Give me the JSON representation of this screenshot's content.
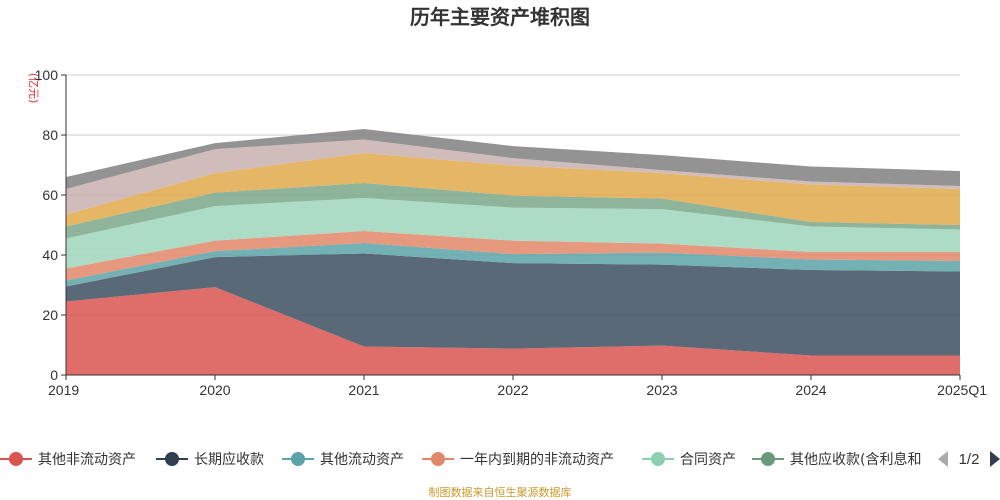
{
  "chart_data": {
    "type": "area",
    "stacked": true,
    "title": "历年主要资产堆积图",
    "unit_label": "(亿元)",
    "x": [
      "2019",
      "2020",
      "2021",
      "2022",
      "2023",
      "2024",
      "2025Q1"
    ],
    "ylim": [
      0,
      100
    ],
    "yticks": [
      0,
      20,
      40,
      60,
      80,
      100
    ],
    "grid": true,
    "legend_position": "bottom",
    "series": [
      {
        "name": "其他非流动资产",
        "color": "#d9534f",
        "values": [
          24.5,
          29.3,
          9.5,
          8.8,
          9.8,
          6.5,
          6.5
        ]
      },
      {
        "name": "长期应收款",
        "color": "#3d4f5f",
        "values": [
          5.0,
          10.0,
          31.0,
          28.5,
          27.0,
          28.5,
          28.0
        ]
      },
      {
        "name": "其他流动资产",
        "color": "#5ba3a8",
        "values": [
          2.0,
          2.0,
          3.5,
          3.0,
          4.0,
          3.5,
          3.5
        ]
      },
      {
        "name": "一年内到期的非流动资产",
        "color": "#e3876a",
        "values": [
          4.0,
          3.5,
          4.0,
          4.5,
          3.0,
          2.5,
          3.0
        ]
      },
      {
        "name": "合同资产",
        "color": "#9fd6bc",
        "values": [
          10.0,
          11.5,
          11.0,
          11.0,
          11.5,
          8.5,
          7.5
        ]
      },
      {
        "name": "其他应收款(含利息和",
        "color": "#7aa88a",
        "values": [
          4.0,
          4.5,
          5.0,
          4.0,
          3.5,
          1.5,
          1.5
        ]
      },
      {
        "name": "",
        "color": "#e0a94a",
        "values": [
          4.0,
          6.5,
          10.0,
          10.0,
          8.5,
          12.5,
          12.0
        ]
      },
      {
        "name": "",
        "color": "#c9b0b0",
        "values": [
          8.5,
          8.0,
          4.5,
          2.5,
          1.0,
          1.0,
          1.0
        ]
      },
      {
        "name": "",
        "color": "#808080",
        "values": [
          4.0,
          2.0,
          3.5,
          4.0,
          5.0,
          5.0,
          5.0
        ]
      }
    ]
  },
  "legend": {
    "items": [
      {
        "label": "其他非流动资产",
        "color": "#d9534f"
      },
      {
        "label": "长期应收款",
        "color": "#2f3f4f"
      },
      {
        "label": "其他流动资产",
        "color": "#5ba3a8"
      },
      {
        "label": "一年内到期的非流动资产",
        "color": "#e3876a"
      },
      {
        "label": "合同资产",
        "color": "#8ccfb0"
      },
      {
        "label": "其他应收款(含利息和",
        "color": "#6a9a7a"
      }
    ],
    "page_indicator": "1/2"
  },
  "footer": "制图数据来自恒生聚源数据库"
}
